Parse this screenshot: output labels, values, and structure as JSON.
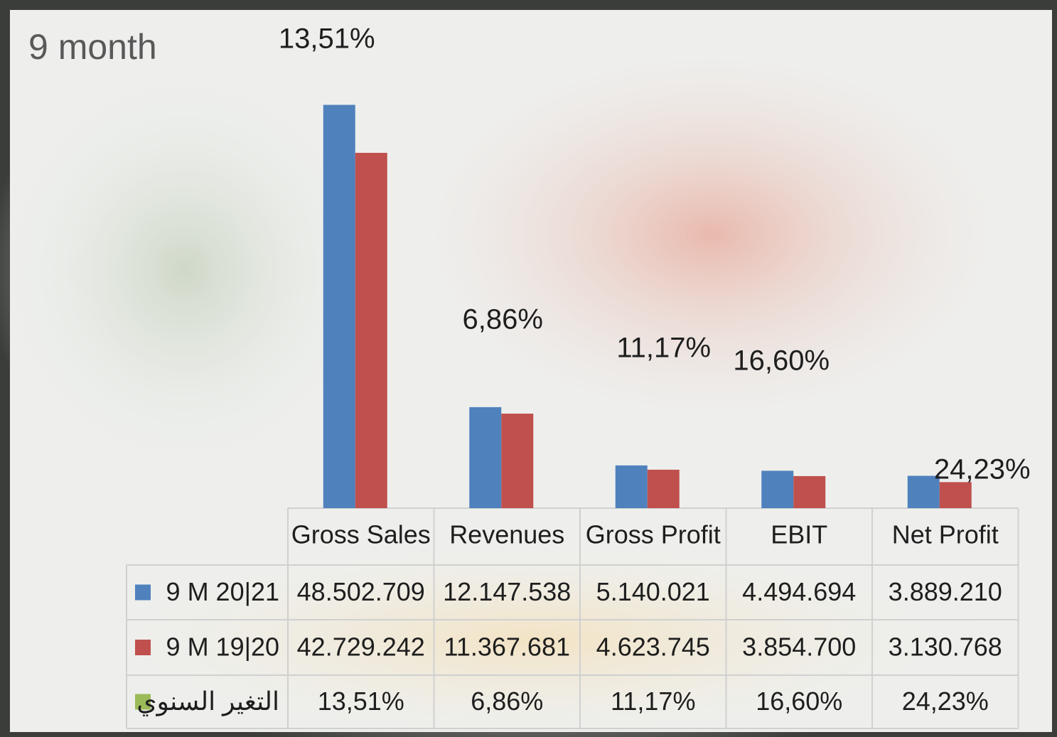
{
  "chart_data": {
    "type": "bar",
    "title": "9 month",
    "categories": [
      "Gross Sales",
      "Revenues",
      "Gross Profit",
      "EBIT",
      "Net Profit"
    ],
    "ylim": [
      0,
      50000000
    ],
    "series": [
      {
        "name": "9 M 20|21",
        "color": "#4f81bd",
        "values": [
          48502709,
          12147538,
          5140021,
          4494694,
          3889210
        ],
        "value_labels": [
          "48.502.709",
          "12.147.538",
          "5.140.021",
          "4.494.694",
          "3.889.210"
        ]
      },
      {
        "name": "9 M 19|20",
        "color": "#c0504d",
        "values": [
          42729242,
          11367681,
          4623745,
          3854700,
          3130768
        ],
        "value_labels": [
          "42.729.242",
          "11.367.681",
          "4.623.745",
          "3.854.700",
          "3.130.768"
        ]
      },
      {
        "name": "التغير السنوي",
        "color": "#9bbb59",
        "values": [
          13.51,
          6.86,
          11.17,
          16.6,
          24.23
        ],
        "value_labels": [
          "13,51%",
          "6,86%",
          "11,17%",
          "16,60%",
          "24,23%"
        ]
      }
    ]
  }
}
